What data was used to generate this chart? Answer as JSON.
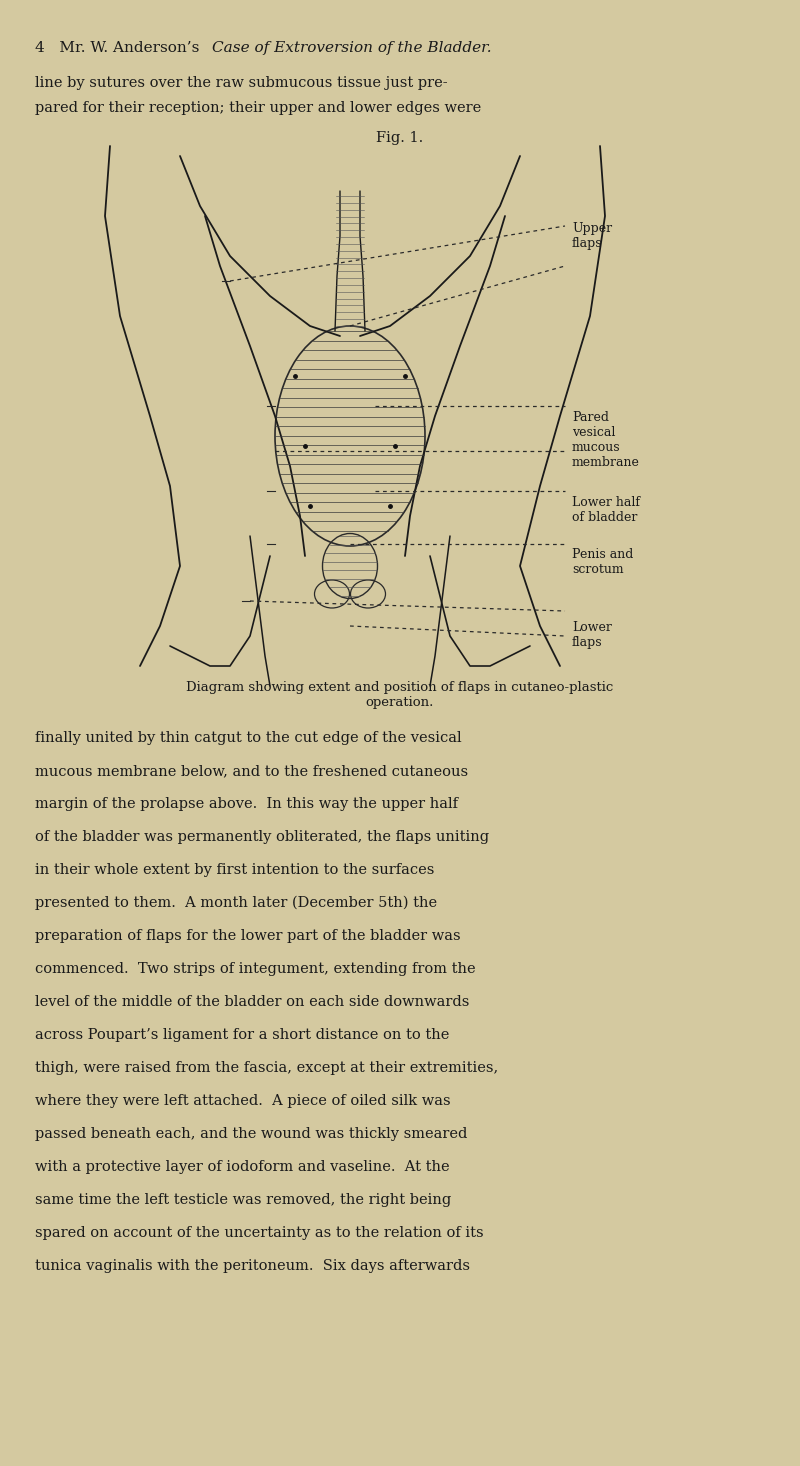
{
  "bg_color": "#d4c9a0",
  "page_width": 8.0,
  "page_height": 14.66,
  "header_text": "4   Mr. W. Anderson’s ",
  "header_italic": "Case of Extroversion of the Bladder.",
  "para1_line1": "line by sutures over the raw submucous tissue just pre-",
  "para1_line2": "pared for their reception; their upper and lower edges were",
  "fig_label": "Fig. 1.",
  "caption": "Diagram showing extent and position of flaps in cutaneo-plastic\noperation.",
  "para2": "finally united by thin catgut to the cut edge of the vesical\nmucous membrane below, and to the freshened cutaneous\nmargin of the prolapse above.  In this way the upper half\nof the bladder was permanently obliterated, the flaps uniting\nin their whole extent by first intention to the surfaces\npresented to them.  A month later (December 5th) the\npreparation of flaps for the lower part of the bladder was\ncommenced.  Two strips of integument, extending from the\nlevel of the middle of the bladder on each side downwards\nacross Poupart’s ligament for a short distance on to the\nthigh, were raised from the fascia, except at their extremities,\nwhere they were left attached.  A piece of oiled silk was\npassed beneath each, and the wound was thickly smeared\nwith a protective layer of iodoform and vaseline.  At the\nsame time the left testicle was removed, the right being\nspared on account of the uncertainty as to the relation of its\ntunica vaginalis with the peritoneum.  Six days afterwards",
  "label_upper_flaps": "Upper\nflaps",
  "label_pared": "Pared\nvesical\nmucous\nmembrane",
  "label_lower_half": "Lower half\nof bladder",
  "label_penis": "Penis and\nscrotum",
  "label_lower_flaps": "Lower\nflaps",
  "text_color": "#1a1a1a",
  "diagram_color": "#2a2a2a",
  "dash_color": "#2a2a2a"
}
